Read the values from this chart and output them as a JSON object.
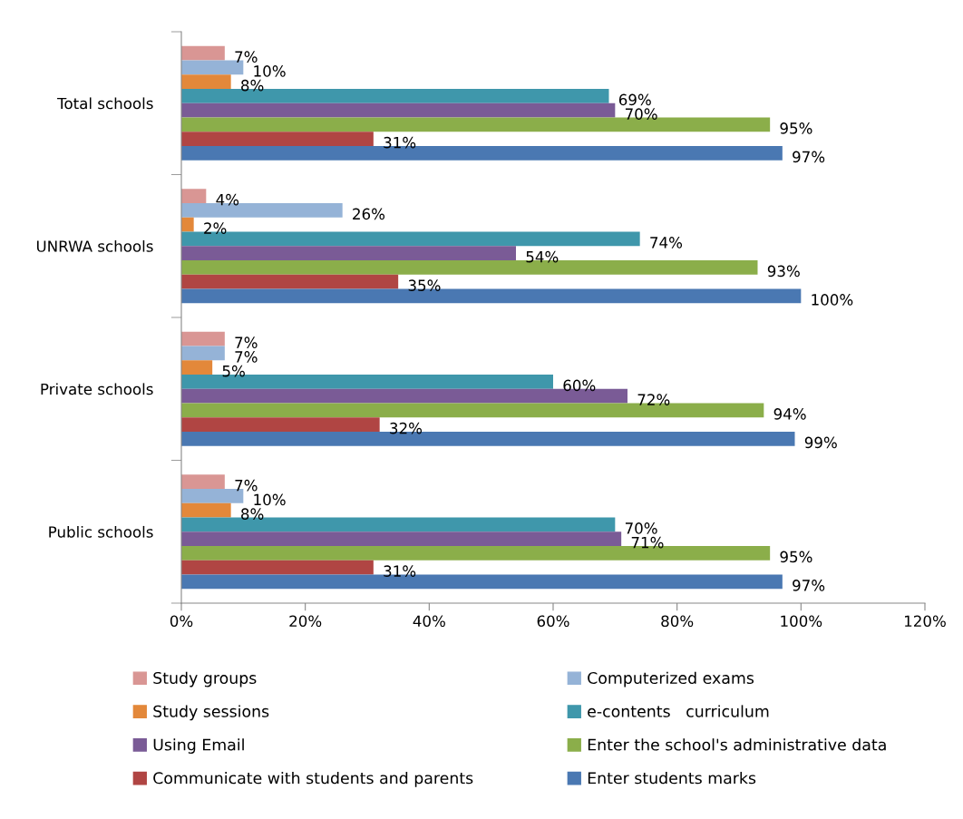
{
  "chart_data": {
    "type": "bar",
    "orientation": "horizontal",
    "categories": [
      "Total schools",
      "UNRWA schools",
      "Private schools",
      "Public schools"
    ],
    "xlim": [
      0,
      120
    ],
    "xticks": [
      {
        "value": 0,
        "label": "0%"
      },
      {
        "value": 20,
        "label": "20%"
      },
      {
        "value": 40,
        "label": "40%"
      },
      {
        "value": 60,
        "label": "60%"
      },
      {
        "value": 80,
        "label": "80%"
      },
      {
        "value": 100,
        "label": "100%"
      },
      {
        "value": 120,
        "label": "120%"
      }
    ],
    "grid": false,
    "legend": "bottom",
    "series": [
      {
        "name": "Study groups",
        "color": "#d99694",
        "values": [
          7,
          4,
          7,
          7
        ],
        "value_labels": [
          "7%",
          "4%",
          "7%",
          "7%"
        ]
      },
      {
        "name": "Computerized exams",
        "color": "#95b3d7",
        "values": [
          10,
          26,
          7,
          10
        ],
        "value_labels": [
          "10%",
          "26%",
          "7%",
          "10%"
        ]
      },
      {
        "name": "Study sessions",
        "color": "#e3883a",
        "values": [
          8,
          2,
          5,
          8
        ],
        "value_labels": [
          "8%",
          "2%",
          "5%",
          "8%"
        ]
      },
      {
        "name": "e-contents   curriculum",
        "color": "#3f97ab",
        "values": [
          69,
          74,
          60,
          70
        ],
        "value_labels": [
          "69%",
          "74%",
          "60%",
          "70%"
        ]
      },
      {
        "name": "Using Email",
        "color": "#7a5b96",
        "values": [
          70,
          54,
          72,
          71
        ],
        "value_labels": [
          "70%",
          "54%",
          "72%",
          "71%"
        ]
      },
      {
        "name": "Enter the school's administrative data",
        "color": "#8bae4a",
        "values": [
          95,
          93,
          94,
          95
        ],
        "value_labels": [
          "95%",
          "93%",
          "94%",
          "95%"
        ]
      },
      {
        "name": "Communicate with students and parents",
        "color": "#b04543",
        "values": [
          31,
          35,
          32,
          31
        ],
        "value_labels": [
          "31%",
          "35%",
          "32%",
          "31%"
        ]
      },
      {
        "name": "Enter students marks",
        "color": "#4a78b2",
        "values": [
          97,
          100,
          99,
          97
        ],
        "value_labels": [
          "97%",
          "100%",
          "99%",
          "97%"
        ]
      }
    ]
  }
}
